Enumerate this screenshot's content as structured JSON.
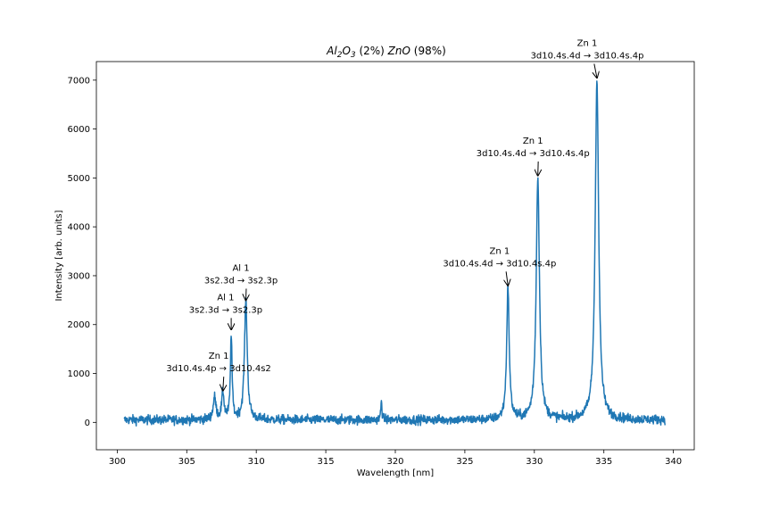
{
  "chart_data": {
    "type": "line",
    "title_main": "Al",
    "title_sub1": "2",
    "title_mid": "O",
    "title_sub2": "3",
    "title_rest1": " (2%) ",
    "title_italic2": "ZnO",
    "title_rest2": " (98%)",
    "xlabel": "Wavelength [nm]",
    "ylabel": "Intensity [arb. units]",
    "xlim": [
      298.5,
      341.5
    ],
    "ylim": [
      -560,
      7380
    ],
    "xticks": [
      300,
      305,
      310,
      315,
      320,
      325,
      330,
      335,
      340
    ],
    "yticks": [
      0,
      1000,
      2000,
      3000,
      4000,
      5000,
      6000,
      7000
    ],
    "line_color": "#1f77b4",
    "x_range": [
      300.5,
      339.4
    ],
    "baseline": 50,
    "noise": 90,
    "peaks": [
      {
        "center": 307.0,
        "height": 450,
        "width": 0.12
      },
      {
        "center": 307.6,
        "height": 550,
        "width": 0.1
      },
      {
        "center": 308.2,
        "height": 1750,
        "width": 0.07
      },
      {
        "center": 309.25,
        "height": 2450,
        "width": 0.12
      },
      {
        "center": 319.0,
        "height": 380,
        "width": 0.05
      },
      {
        "center": 328.1,
        "height": 2700,
        "width": 0.11
      },
      {
        "center": 330.25,
        "height": 4950,
        "width": 0.14
      },
      {
        "center": 334.5,
        "height": 6950,
        "width": 0.15
      }
    ],
    "annotations": [
      {
        "line1": "Zn 1",
        "line2": "3d10.4s.4p → 3d10.4s2",
        "text_x": 307.3,
        "text_y": 1300,
        "arrow_x": 307.6,
        "arrow_y": 650
      },
      {
        "line1": "Al 1",
        "line2": "3s2.3d → 3s2.3p",
        "text_x": 307.8,
        "text_y": 2500,
        "arrow_x": 308.2,
        "arrow_y": 1900
      },
      {
        "line1": "Al 1",
        "line2": "3s2.3d → 3s2.3p",
        "text_x": 308.9,
        "text_y": 3100,
        "arrow_x": 309.25,
        "arrow_y": 2500
      },
      {
        "line1": "Zn 1",
        "line2": "3d10.4s.4d → 3d10.4s.4p",
        "text_x": 327.5,
        "text_y": 3450,
        "arrow_x": 328.1,
        "arrow_y": 2800
      },
      {
        "line1": "Zn 1",
        "line2": "3d10.4s.4d → 3d10.4s.4p",
        "text_x": 329.9,
        "text_y": 5700,
        "arrow_x": 330.25,
        "arrow_y": 5050
      },
      {
        "line1": "Zn 1",
        "line2": "3d10.4s.4d → 3d10.4s.4p",
        "text_x": 333.8,
        "text_y": 7700,
        "arrow_x": 334.5,
        "arrow_y": 7050
      }
    ],
    "grid": false
  }
}
